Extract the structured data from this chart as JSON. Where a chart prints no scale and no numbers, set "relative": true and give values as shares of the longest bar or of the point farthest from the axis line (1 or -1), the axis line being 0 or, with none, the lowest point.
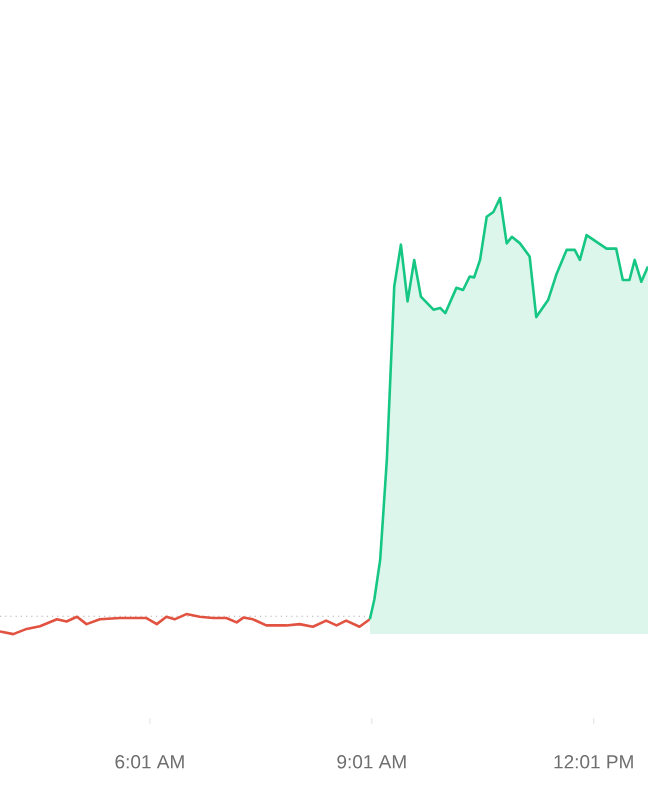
{
  "chart_data": {
    "type": "line",
    "relative": true,
    "xlim": [
      3.99,
      12.75
    ],
    "xticks": [
      {
        "value": 6.0167,
        "label": "6:01 AM"
      },
      {
        "value": 9.0167,
        "label": "9:01 AM"
      },
      {
        "value": 12.0167,
        "label": "12:01 PM"
      }
    ],
    "series": [
      {
        "color": "#e15241",
        "x": [
          3.99,
          4.17,
          4.35,
          4.53,
          4.76,
          4.89,
          5.03,
          5.16,
          5.34,
          5.61,
          5.97,
          6.11,
          6.24,
          6.35,
          6.51,
          6.69,
          6.87,
          7.05,
          7.19,
          7.28,
          7.41,
          7.59,
          7.86,
          8.04,
          8.22,
          8.4,
          8.54,
          8.67,
          8.85,
          8.99
        ],
        "values": [
          0.006,
          0,
          0.012,
          0.018,
          0.034,
          0.029,
          0.04,
          0.023,
          0.034,
          0.037,
          0.037,
          0.023,
          0.04,
          0.034,
          0.046,
          0.04,
          0.037,
          0.037,
          0.027,
          0.038,
          0.034,
          0.02,
          0.02,
          0.023,
          0.017,
          0.031,
          0.02,
          0.031,
          0.017,
          0.034
        ]
      },
      {
        "type": "area",
        "color": "#16c784",
        "x": [
          8.99,
          9.05,
          9.13,
          9.22,
          9.32,
          9.41,
          9.5,
          9.59,
          9.68,
          9.85,
          9.94,
          10.01,
          10.16,
          10.25,
          10.34,
          10.4,
          10.48,
          10.57,
          10.66,
          10.75,
          10.84,
          10.91,
          11.02,
          11.15,
          11.24,
          11.4,
          11.51,
          11.65,
          11.76,
          11.83,
          11.92,
          12.19,
          12.32,
          12.41,
          12.5,
          12.57,
          12.66,
          12.75
        ],
        "values": [
          0.034,
          0.079,
          0.171,
          0.4,
          0.797,
          0.893,
          0.763,
          0.858,
          0.774,
          0.744,
          0.748,
          0.736,
          0.794,
          0.789,
          0.82,
          0.818,
          0.858,
          0.957,
          0.968,
          1.0,
          0.896,
          0.911,
          0.896,
          0.866,
          0.727,
          0.766,
          0.824,
          0.881,
          0.881,
          0.858,
          0.915,
          0.884,
          0.884,
          0.812,
          0.812,
          0.858,
          0.808,
          0.843
        ]
      }
    ],
    "ref_lines": [
      {
        "axis": "y",
        "value": 0.041,
        "color": "#b0b0b0",
        "line_style": "dotted"
      }
    ]
  }
}
